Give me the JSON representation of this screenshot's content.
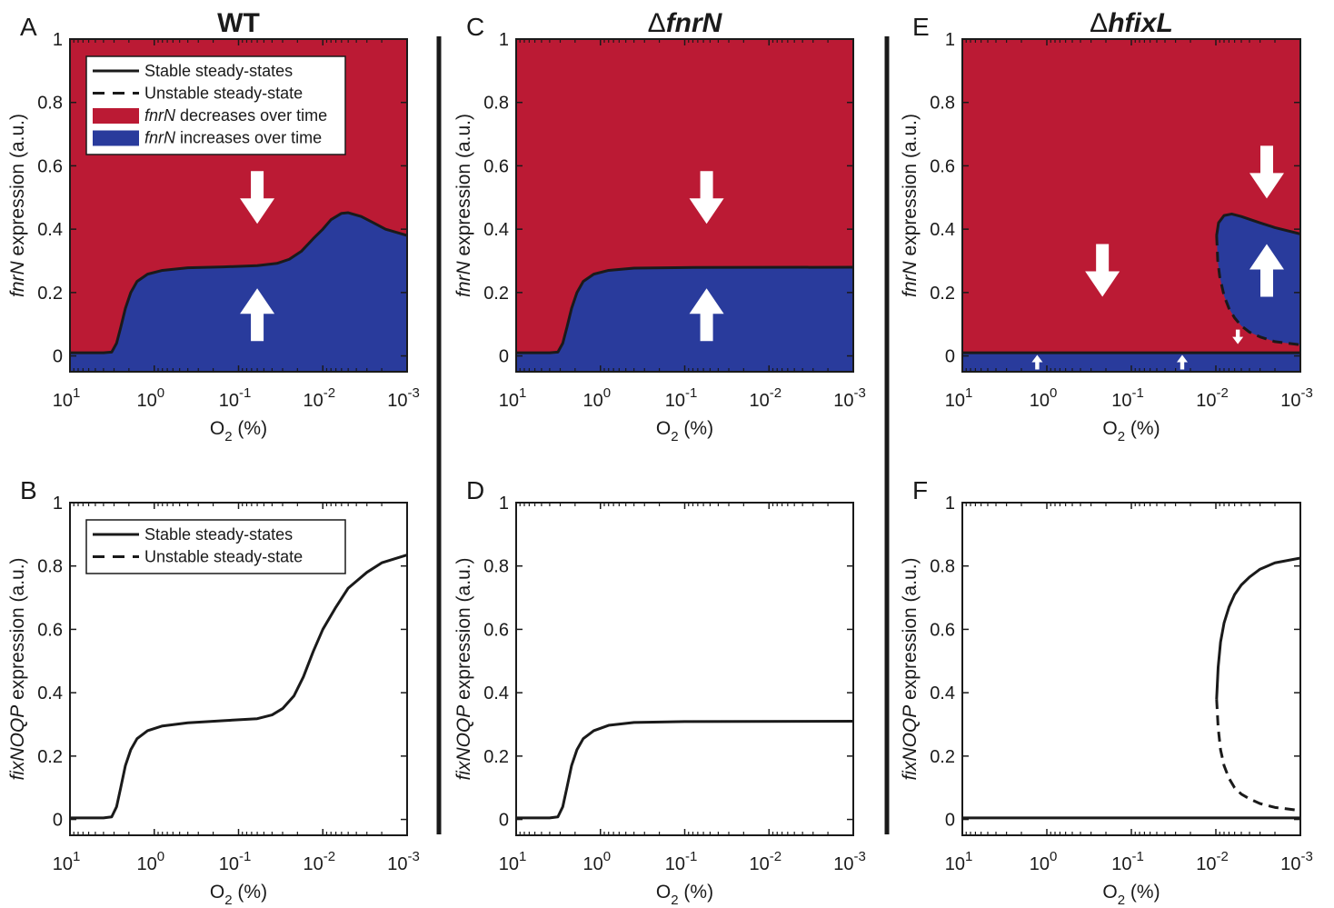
{
  "figure": {
    "dividers": true,
    "colors": {
      "red": "#bb1a34",
      "blue": "#293b9c",
      "line": "#1a1a1a",
      "arrow": "#ffffff"
    }
  },
  "chart_data": [
    {
      "id": "A",
      "panel_label": "A",
      "title": "WT",
      "title_prefix": "",
      "title_italic": false,
      "type": "area",
      "xscale": "log",
      "xlim": [
        10,
        0.001
      ],
      "ylim": [
        -0.05,
        1
      ],
      "xlabel": "O",
      "xlabel_sub": "2",
      "xlabel_suffix": " (%)",
      "ylabel_italic": "fnrN",
      "ylabel_rest": " expression (a.u.)",
      "xticks": [
        {
          "b": "10",
          "e": "1"
        },
        {
          "b": "10",
          "e": "0"
        },
        {
          "b": "10",
          "e": "-1"
        },
        {
          "b": "10",
          "e": "-2"
        },
        {
          "b": "10",
          "e": "-3"
        }
      ],
      "yticks": [
        "0",
        "0.2",
        "0.4",
        "0.6",
        "0.8",
        "1"
      ],
      "regions": {
        "above": "red",
        "below": "blue"
      },
      "series": [
        {
          "style": "solid",
          "points": [
            [
              10,
              0.01
            ],
            [
              4,
              0.01
            ],
            [
              3.2,
              0.012
            ],
            [
              2.8,
              0.04
            ],
            [
              2.5,
              0.09
            ],
            [
              2.2,
              0.15
            ],
            [
              1.9,
              0.2
            ],
            [
              1.6,
              0.235
            ],
            [
              1.2,
              0.258
            ],
            [
              0.8,
              0.27
            ],
            [
              0.4,
              0.278
            ],
            [
              0.15,
              0.281
            ],
            [
              0.06,
              0.285
            ],
            [
              0.035,
              0.292
            ],
            [
              0.025,
              0.305
            ],
            [
              0.018,
              0.33
            ],
            [
              0.013,
              0.37
            ],
            [
              0.01,
              0.4
            ],
            [
              0.008,
              0.43
            ],
            [
              0.006,
              0.45
            ],
            [
              0.005,
              0.452
            ],
            [
              0.0035,
              0.44
            ],
            [
              0.0025,
              0.42
            ],
            [
              0.0018,
              0.4
            ],
            [
              0.001,
              0.38
            ]
          ]
        }
      ],
      "arrows": [
        {
          "x": 0.06,
          "y": 0.5,
          "dir": "down",
          "size": "big"
        },
        {
          "x": 0.06,
          "y": 0.13,
          "dir": "up",
          "size": "big"
        }
      ],
      "legend": {
        "placement": "top-left",
        "items": [
          {
            "kind": "solid",
            "text": "Stable steady-states"
          },
          {
            "kind": "dashed",
            "text": "Unstable steady-state"
          },
          {
            "kind": "red",
            "italic": "fnrN",
            "text": " decreases over time"
          },
          {
            "kind": "blue",
            "italic": "fnrN",
            "text": " increases over time"
          }
        ]
      }
    },
    {
      "id": "B",
      "panel_label": "B",
      "title": "",
      "title_prefix": "",
      "title_italic": false,
      "type": "line",
      "xscale": "log",
      "xlim": [
        10,
        0.001
      ],
      "ylim": [
        -0.05,
        1
      ],
      "xlabel": "O",
      "xlabel_sub": "2",
      "xlabel_suffix": " (%)",
      "ylabel_italic": "fixNOQP",
      "ylabel_rest": " expression (a.u.)",
      "xticks": [
        {
          "b": "10",
          "e": "1"
        },
        {
          "b": "10",
          "e": "0"
        },
        {
          "b": "10",
          "e": "-1"
        },
        {
          "b": "10",
          "e": "-2"
        },
        {
          "b": "10",
          "e": "-3"
        }
      ],
      "yticks": [
        "0",
        "0.2",
        "0.4",
        "0.6",
        "0.8",
        "1"
      ],
      "series": [
        {
          "style": "solid",
          "points": [
            [
              10,
              0.005
            ],
            [
              4,
              0.005
            ],
            [
              3.2,
              0.008
            ],
            [
              2.8,
              0.04
            ],
            [
              2.5,
              0.1
            ],
            [
              2.2,
              0.17
            ],
            [
              1.9,
              0.22
            ],
            [
              1.6,
              0.255
            ],
            [
              1.2,
              0.28
            ],
            [
              0.8,
              0.295
            ],
            [
              0.4,
              0.305
            ],
            [
              0.15,
              0.312
            ],
            [
              0.06,
              0.318
            ],
            [
              0.04,
              0.33
            ],
            [
              0.03,
              0.35
            ],
            [
              0.022,
              0.39
            ],
            [
              0.017,
              0.45
            ],
            [
              0.013,
              0.53
            ],
            [
              0.01,
              0.6
            ],
            [
              0.007,
              0.67
            ],
            [
              0.005,
              0.73
            ],
            [
              0.003,
              0.78
            ],
            [
              0.002,
              0.81
            ],
            [
              0.001,
              0.835
            ]
          ]
        }
      ],
      "arrows": [],
      "legend": {
        "placement": "top-left",
        "items": [
          {
            "kind": "solid",
            "text": "Stable steady-states"
          },
          {
            "kind": "dashed",
            "text": "Unstable steady-state"
          }
        ]
      }
    },
    {
      "id": "C",
      "panel_label": "C",
      "title": "fnrN",
      "title_prefix": "Δ",
      "title_italic": true,
      "type": "area",
      "xscale": "log",
      "xlim": [
        10,
        0.001
      ],
      "ylim": [
        -0.05,
        1
      ],
      "xlabel": "O",
      "xlabel_sub": "2",
      "xlabel_suffix": " (%)",
      "ylabel_italic": "fnrN",
      "ylabel_rest": " expression (a.u.)",
      "xticks": [
        {
          "b": "10",
          "e": "1"
        },
        {
          "b": "10",
          "e": "0"
        },
        {
          "b": "10",
          "e": "-1"
        },
        {
          "b": "10",
          "e": "-2"
        },
        {
          "b": "10",
          "e": "-3"
        }
      ],
      "yticks": [
        "0",
        "0.2",
        "0.4",
        "0.6",
        "0.8",
        "1"
      ],
      "regions": {
        "above": "red",
        "below": "blue"
      },
      "series": [
        {
          "style": "solid",
          "points": [
            [
              10,
              0.01
            ],
            [
              4,
              0.01
            ],
            [
              3.2,
              0.012
            ],
            [
              2.8,
              0.04
            ],
            [
              2.5,
              0.09
            ],
            [
              2.2,
              0.15
            ],
            [
              1.9,
              0.2
            ],
            [
              1.6,
              0.235
            ],
            [
              1.2,
              0.258
            ],
            [
              0.8,
              0.27
            ],
            [
              0.4,
              0.277
            ],
            [
              0.1,
              0.279
            ],
            [
              0.001,
              0.28
            ]
          ]
        }
      ],
      "arrows": [
        {
          "x": 0.055,
          "y": 0.5,
          "dir": "down",
          "size": "big"
        },
        {
          "x": 0.055,
          "y": 0.13,
          "dir": "up",
          "size": "big"
        }
      ],
      "legend": null
    },
    {
      "id": "D",
      "panel_label": "D",
      "title": "",
      "title_prefix": "",
      "title_italic": false,
      "type": "line",
      "xscale": "log",
      "xlim": [
        10,
        0.001
      ],
      "ylim": [
        -0.05,
        1
      ],
      "xlabel": "O",
      "xlabel_sub": "2",
      "xlabel_suffix": " (%)",
      "ylabel_italic": "fixNOQP",
      "ylabel_rest": " expression (a.u.)",
      "xticks": [
        {
          "b": "10",
          "e": "1"
        },
        {
          "b": "10",
          "e": "0"
        },
        {
          "b": "10",
          "e": "-1"
        },
        {
          "b": "10",
          "e": "-2"
        },
        {
          "b": "10",
          "e": "-3"
        }
      ],
      "yticks": [
        "0",
        "0.2",
        "0.4",
        "0.6",
        "0.8",
        "1"
      ],
      "series": [
        {
          "style": "solid",
          "points": [
            [
              10,
              0.005
            ],
            [
              4,
              0.005
            ],
            [
              3.2,
              0.008
            ],
            [
              2.8,
              0.04
            ],
            [
              2.5,
              0.1
            ],
            [
              2.2,
              0.17
            ],
            [
              1.9,
              0.22
            ],
            [
              1.6,
              0.255
            ],
            [
              1.2,
              0.28
            ],
            [
              0.8,
              0.297
            ],
            [
              0.4,
              0.306
            ],
            [
              0.1,
              0.309
            ],
            [
              0.001,
              0.31
            ]
          ]
        }
      ],
      "arrows": [],
      "legend": null
    },
    {
      "id": "E",
      "panel_label": "E",
      "title": "hfixL",
      "title_prefix": "Δ",
      "title_italic": true,
      "type": "area",
      "xscale": "log",
      "xlim": [
        10,
        0.001
      ],
      "ylim": [
        -0.05,
        1
      ],
      "xlabel": "O",
      "xlabel_sub": "2",
      "xlabel_suffix": " (%)",
      "ylabel_italic": "fnrN",
      "ylabel_rest": " expression (a.u.)",
      "xticks": [
        {
          "b": "10",
          "e": "1"
        },
        {
          "b": "10",
          "e": "0"
        },
        {
          "b": "10",
          "e": "-1"
        },
        {
          "b": "10",
          "e": "-2"
        },
        {
          "b": "10",
          "e": "-3"
        }
      ],
      "yticks": [
        "0",
        "0.2",
        "0.4",
        "0.6",
        "0.8",
        "1"
      ],
      "regions": {
        "above": "red",
        "below": "blue",
        "island": "blue"
      },
      "series": [
        {
          "style": "solid",
          "points": [
            [
              10,
              0.01
            ],
            [
              0.001,
              0.01
            ]
          ]
        },
        {
          "style": "solid",
          "points": [
            [
              0.0098,
              0.38
            ],
            [
              0.0093,
              0.42
            ],
            [
              0.008,
              0.443
            ],
            [
              0.0065,
              0.448
            ],
            [
              0.005,
              0.44
            ],
            [
              0.003,
              0.42
            ],
            [
              0.002,
              0.405
            ],
            [
              0.001,
              0.385
            ]
          ]
        },
        {
          "style": "dashed",
          "points": [
            [
              0.0098,
              0.38
            ],
            [
              0.0095,
              0.3
            ],
            [
              0.009,
              0.25
            ],
            [
              0.008,
              0.19
            ],
            [
              0.007,
              0.15
            ],
            [
              0.006,
              0.12
            ],
            [
              0.005,
              0.095
            ],
            [
              0.004,
              0.075
            ],
            [
              0.003,
              0.06
            ],
            [
              0.002,
              0.045
            ],
            [
              0.001,
              0.035
            ]
          ]
        }
      ],
      "arrows": [
        {
          "x": 0.22,
          "y": 0.27,
          "dir": "down",
          "size": "big"
        },
        {
          "x": 0.0025,
          "y": 0.58,
          "dir": "down",
          "size": "big"
        },
        {
          "x": 0.0025,
          "y": 0.27,
          "dir": "up",
          "size": "big"
        },
        {
          "x": 0.0055,
          "y": 0.06,
          "dir": "down",
          "size": "small"
        },
        {
          "x": 1.3,
          "y": -0.02,
          "dir": "up",
          "size": "small"
        },
        {
          "x": 0.025,
          "y": -0.02,
          "dir": "up",
          "size": "small"
        }
      ],
      "legend": null
    },
    {
      "id": "F",
      "panel_label": "F",
      "title": "",
      "title_prefix": "",
      "title_italic": false,
      "type": "line",
      "xscale": "log",
      "xlim": [
        10,
        0.001
      ],
      "ylim": [
        -0.05,
        1
      ],
      "xlabel": "O",
      "xlabel_sub": "2",
      "xlabel_suffix": " (%)",
      "ylabel_italic": "fixNOQP",
      "ylabel_rest": " expression (a.u.)",
      "xticks": [
        {
          "b": "10",
          "e": "1"
        },
        {
          "b": "10",
          "e": "0"
        },
        {
          "b": "10",
          "e": "-1"
        },
        {
          "b": "10",
          "e": "-2"
        },
        {
          "b": "10",
          "e": "-3"
        }
      ],
      "yticks": [
        "0",
        "0.2",
        "0.4",
        "0.6",
        "0.8",
        "1"
      ],
      "series": [
        {
          "style": "solid",
          "points": [
            [
              10,
              0.005
            ],
            [
              0.001,
              0.005
            ]
          ]
        },
        {
          "style": "solid",
          "points": [
            [
              0.0098,
              0.38
            ],
            [
              0.0094,
              0.48
            ],
            [
              0.0088,
              0.56
            ],
            [
              0.008,
              0.62
            ],
            [
              0.007,
              0.67
            ],
            [
              0.006,
              0.71
            ],
            [
              0.005,
              0.74
            ],
            [
              0.004,
              0.765
            ],
            [
              0.003,
              0.79
            ],
            [
              0.002,
              0.81
            ],
            [
              0.001,
              0.825
            ]
          ]
        },
        {
          "style": "dashed",
          "points": [
            [
              0.0098,
              0.38
            ],
            [
              0.0094,
              0.29
            ],
            [
              0.0088,
              0.22
            ],
            [
              0.008,
              0.17
            ],
            [
              0.007,
              0.13
            ],
            [
              0.006,
              0.1
            ],
            [
              0.005,
              0.08
            ],
            [
              0.004,
              0.065
            ],
            [
              0.003,
              0.05
            ],
            [
              0.002,
              0.038
            ],
            [
              0.001,
              0.028
            ]
          ]
        }
      ],
      "arrows": [],
      "legend": null
    }
  ]
}
